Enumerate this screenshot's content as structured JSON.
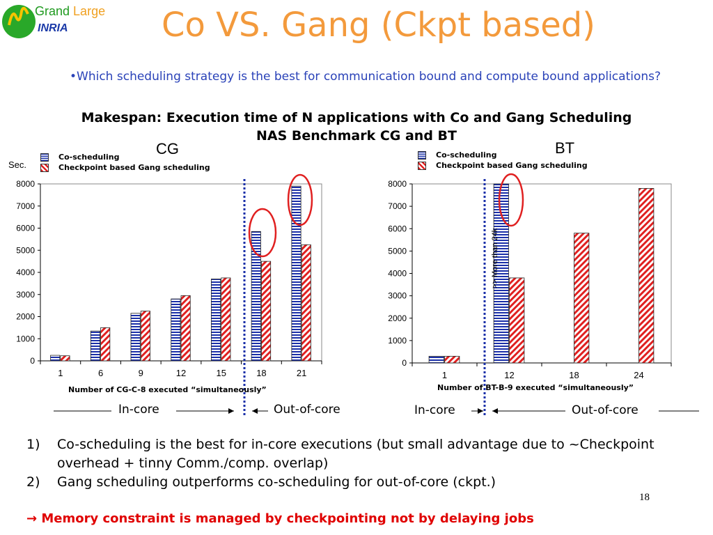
{
  "logo": {
    "brand_word1": "Grand",
    "brand_word2": "Large",
    "org": "INRIA"
  },
  "slide": {
    "title": "Co VS. Gang (Ckpt based)",
    "bullet": "•Which scheduling strategy is the best for communication bound and compute bound applications?",
    "subtitle_line1": "Makespan: Execution time of N applications with Co and Gang Scheduling",
    "subtitle_line2": "NAS Benchmark CG and BT",
    "page_number": "18",
    "findings": [
      {
        "num": "1)",
        "text": "Co-scheduling is the best for in-core executions (but small advantage due to ~Checkpoint overhead + tinny Comm./comp. overlap)"
      },
      {
        "num": "2)",
        "text": "Gang scheduling outperforms co-scheduling for out-of-core (ckpt.)"
      }
    ],
    "conclusion": "Memory constraint is managed by checkpointing not by delaying jobs",
    "conclusion_arrow": "→"
  },
  "annotations": {
    "cg_in": "In-core",
    "cg_out": "Out-of-core",
    "bt_in": "In-core",
    "bt_out": "Out-of-core",
    "bt_note": ">> More than 24k",
    "sec_label": "Sec."
  },
  "colors": {
    "title": "#f39a3c",
    "bullet": "#2a42b8",
    "co": "#1a2fa8",
    "gang": "#e02020",
    "divider": "#1a2fa8",
    "highlight": "#e02020",
    "conclusion": "#e00000"
  },
  "chart_data": [
    {
      "type": "bar",
      "name": "CG",
      "title": "CG",
      "ylabel": "Sec.",
      "xlabel": "Number of CG-C-8 executed “simultaneously”",
      "categories": [
        "1",
        "6",
        "9",
        "12",
        "15",
        "18",
        "21"
      ],
      "ylim": [
        0,
        8000
      ],
      "yticks": [
        0,
        1000,
        2000,
        3000,
        4000,
        5000,
        6000,
        7000,
        8000
      ],
      "legend_position": "top-left",
      "series": [
        {
          "name": "Co-scheduling",
          "values": [
            250,
            1350,
            2150,
            2800,
            3700,
            5850,
            7900
          ]
        },
        {
          "name": "Checkpoint based Gang scheduling",
          "values": [
            230,
            1500,
            2250,
            2950,
            3750,
            4500,
            5250
          ]
        }
      ]
    },
    {
      "type": "bar",
      "name": "BT",
      "title": "BT",
      "xlabel": "Number of BT-B-9 executed “simultaneously”",
      "categories": [
        "1",
        "12",
        "18",
        "24"
      ],
      "ylim": [
        0,
        8000
      ],
      "yticks": [
        0,
        1000,
        2000,
        3000,
        4000,
        5000,
        6000,
        7000,
        8000
      ],
      "legend_position": "top-left",
      "series": [
        {
          "name": "Co-scheduling",
          "values": [
            300,
            8000,
            null,
            null
          ]
        },
        {
          "name": "Checkpoint based Gang scheduling",
          "values": [
            300,
            3800,
            5800,
            7800
          ]
        }
      ]
    }
  ]
}
